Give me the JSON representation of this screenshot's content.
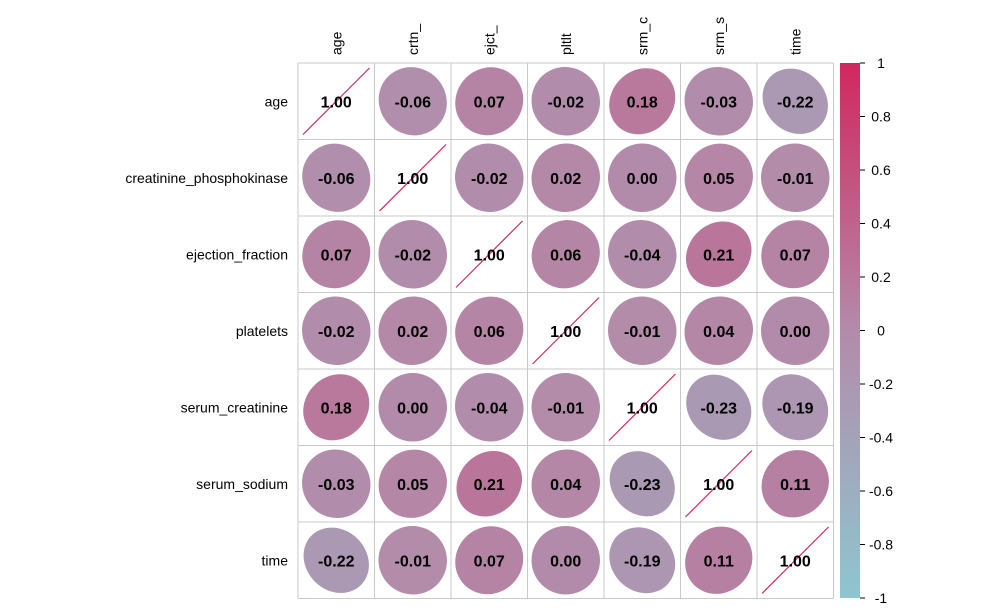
{
  "chart_data": {
    "type": "heatmap",
    "method": "ellipse",
    "columns": [
      "age",
      "crtn_",
      "ejct_",
      "pltlt",
      "srm_c",
      "srm_s",
      "time"
    ],
    "rows": [
      "age",
      "creatinine_phosphokinase",
      "ejection_fraction",
      "platelets",
      "serum_creatinine",
      "serum_sodium",
      "time"
    ],
    "matrix": [
      [
        1.0,
        -0.06,
        0.07,
        -0.02,
        0.18,
        -0.03,
        -0.22
      ],
      [
        -0.06,
        1.0,
        -0.02,
        0.02,
        0.0,
        0.05,
        -0.01
      ],
      [
        0.07,
        -0.02,
        1.0,
        0.06,
        -0.04,
        0.21,
        0.07
      ],
      [
        -0.02,
        0.02,
        0.06,
        1.0,
        -0.01,
        0.04,
        0.0
      ],
      [
        0.18,
        0.0,
        -0.04,
        -0.01,
        1.0,
        -0.23,
        -0.19
      ],
      [
        -0.03,
        0.05,
        0.21,
        0.04,
        -0.23,
        1.0,
        0.11
      ],
      [
        -0.22,
        -0.01,
        0.07,
        0.0,
        -0.19,
        0.11,
        1.0
      ]
    ],
    "value_labels": [
      [
        "1.00",
        "-0.06",
        "0.07",
        "-0.02",
        "0.18",
        "-0.03",
        "-0.22"
      ],
      [
        "-0.06",
        "1.00",
        "-0.02",
        "0.02",
        "0.00",
        "0.05",
        "-0.01"
      ],
      [
        "0.07",
        "-0.02",
        "1.00",
        "0.06",
        "-0.04",
        "0.21",
        "0.07"
      ],
      [
        "-0.02",
        "0.02",
        "0.06",
        "1.00",
        "-0.01",
        "0.04",
        "0.00"
      ],
      [
        "0.18",
        "0.00",
        "-0.04",
        "-0.01",
        "1.00",
        "-0.23",
        "-0.19"
      ],
      [
        "-0.03",
        "0.05",
        "0.21",
        "0.04",
        "-0.23",
        "1.00",
        "0.11"
      ],
      [
        "-0.22",
        "-0.01",
        "0.07",
        "0.00",
        "-0.19",
        "0.11",
        "1.00"
      ]
    ],
    "colorbar": {
      "range": [
        -1,
        1
      ],
      "ticks": [
        "1",
        "0.8",
        "0.6",
        "0.4",
        "0.2",
        "0",
        "-0.2",
        "-0.4",
        "-0.6",
        "-0.8",
        "-1"
      ],
      "colors": {
        "low": "#8EC6CF",
        "mid": "#B38BAA",
        "high": "#D1275E"
      }
    },
    "grid": true
  }
}
